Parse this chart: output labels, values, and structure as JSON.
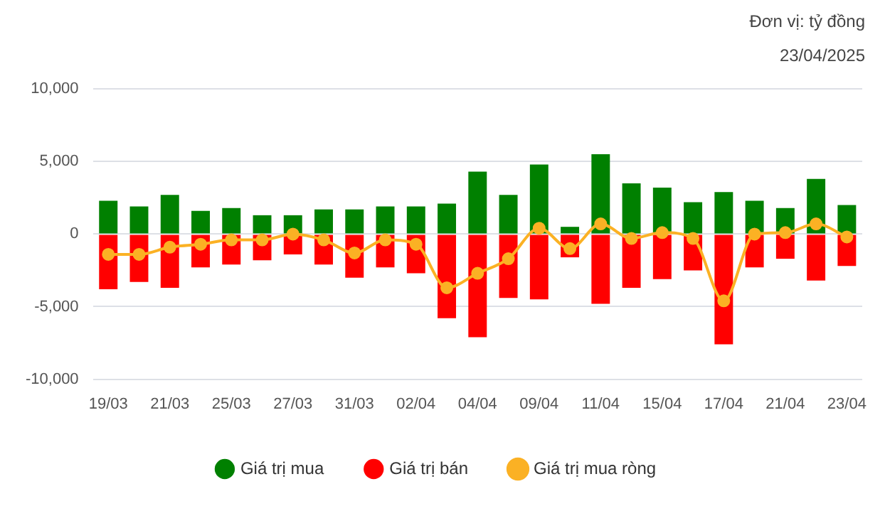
{
  "chart_data": {
    "type": "bar",
    "stacked": true,
    "annotations": [
      "Đơn vị: tỷ đồng",
      "23/04/2025"
    ],
    "categories": [
      "19/03",
      null,
      "21/03",
      null,
      "25/03",
      null,
      "27/03",
      null,
      "31/03",
      null,
      "02/04",
      null,
      "04/04",
      null,
      "09/04",
      null,
      "11/04",
      null,
      "15/04",
      null,
      "17/04",
      null,
      "21/04",
      null,
      "23/04"
    ],
    "series": [
      {
        "name": "Giá trị mua",
        "color": "#008000",
        "values": [
          2300,
          1900,
          2700,
          1600,
          1800,
          1300,
          1300,
          1700,
          1700,
          1900,
          1900,
          2100,
          4300,
          2700,
          4800,
          500,
          5500,
          3500,
          3200,
          2200,
          2900,
          2300,
          1800,
          3800,
          2000
        ]
      },
      {
        "name": "Giá trị bán",
        "color": "#ff0000",
        "values": [
          -3800,
          -3300,
          -3700,
          -2300,
          -2100,
          -1800,
          -1400,
          -2100,
          -3000,
          -2300,
          -2700,
          -5800,
          -7100,
          -4400,
          -4500,
          -1600,
          -4800,
          -3700,
          -3100,
          -2500,
          -7600,
          -2300,
          -1700,
          -3200,
          -2200
        ]
      },
      {
        "name": "Giá trị mua ròng",
        "type": "line",
        "color": "#fbb124",
        "marker": "circle",
        "values": [
          -1400,
          -1400,
          -900,
          -700,
          -400,
          -400,
          0,
          -400,
          -1300,
          -400,
          -700,
          -3700,
          -2700,
          -1700,
          400,
          -1000,
          700,
          -300,
          100,
          -300,
          -4600,
          0,
          100,
          700,
          -200
        ]
      }
    ],
    "ylim": [
      -10000,
      10000
    ],
    "yticks": [
      {
        "value": -10000,
        "label": "-10,000"
      },
      {
        "value": -5000,
        "label": "-5,000"
      },
      0,
      {
        "value": 5000,
        "label": "5,000"
      },
      {
        "value": 10000,
        "label": "10,000"
      }
    ],
    "grid": "y",
    "legend": "bottom"
  }
}
